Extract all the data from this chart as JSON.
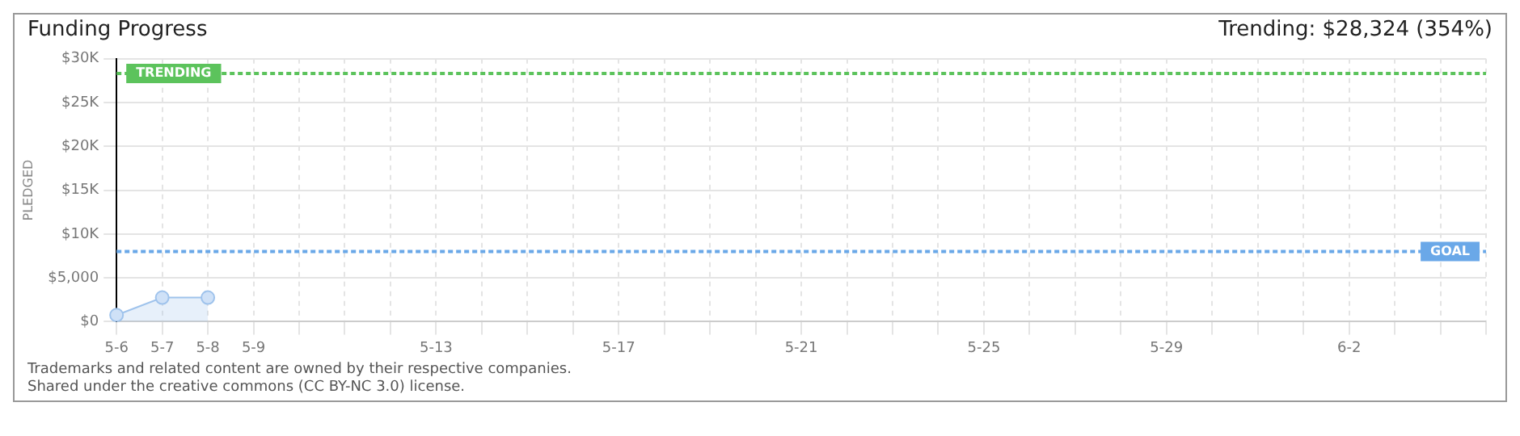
{
  "chart_data": {
    "type": "area",
    "title": "Funding Progress",
    "subtitle": "Trending: $28,324 (354%)",
    "ylabel": "PLEDGED",
    "categories": [
      "5-6",
      "5-7",
      "5-8",
      "5-9",
      null,
      null,
      null,
      "5-13",
      null,
      null,
      null,
      "5-17",
      null,
      null,
      null,
      "5-21",
      null,
      null,
      null,
      "5-25",
      null,
      null,
      null,
      "5-29",
      null,
      null,
      null,
      "6-2",
      null,
      null,
      null
    ],
    "series": [
      {
        "color": "#9fc3ec",
        "values": [
          750,
          2750,
          2750,
          null,
          null,
          null,
          null,
          null,
          null,
          null,
          null,
          null,
          null,
          null,
          null,
          null,
          null,
          null,
          null,
          null,
          null,
          null,
          null,
          null,
          null,
          null,
          null,
          null,
          null,
          null,
          null
        ]
      }
    ],
    "ylim": [
      0,
      30000
    ],
    "yticks": [
      {
        "value": 0,
        "label": "$0"
      },
      {
        "value": 5000,
        "label": "$5,000"
      },
      {
        "value": 10000,
        "label": "$10K"
      },
      {
        "value": 15000,
        "label": "$15K"
      },
      {
        "value": 20000,
        "label": "$20K"
      },
      {
        "value": 25000,
        "label": "$25K"
      },
      {
        "value": 30000,
        "label": "$30K"
      }
    ],
    "ref_lines": [
      {
        "axis": "y",
        "value": 28324,
        "label": "TRENDING",
        "color": "#5cc35c",
        "line_style": "dashed"
      },
      {
        "axis": "y",
        "value": 8000,
        "label": "GOAL",
        "color": "#6aa8e8",
        "line_style": "dashed"
      }
    ],
    "annotations": [
      "Trademarks and related content are owned by their respective companies.",
      "Shared under the creative commons (CC BY-NC 3.0) license."
    ],
    "grid": true,
    "marker": "circle",
    "legend": false
  }
}
